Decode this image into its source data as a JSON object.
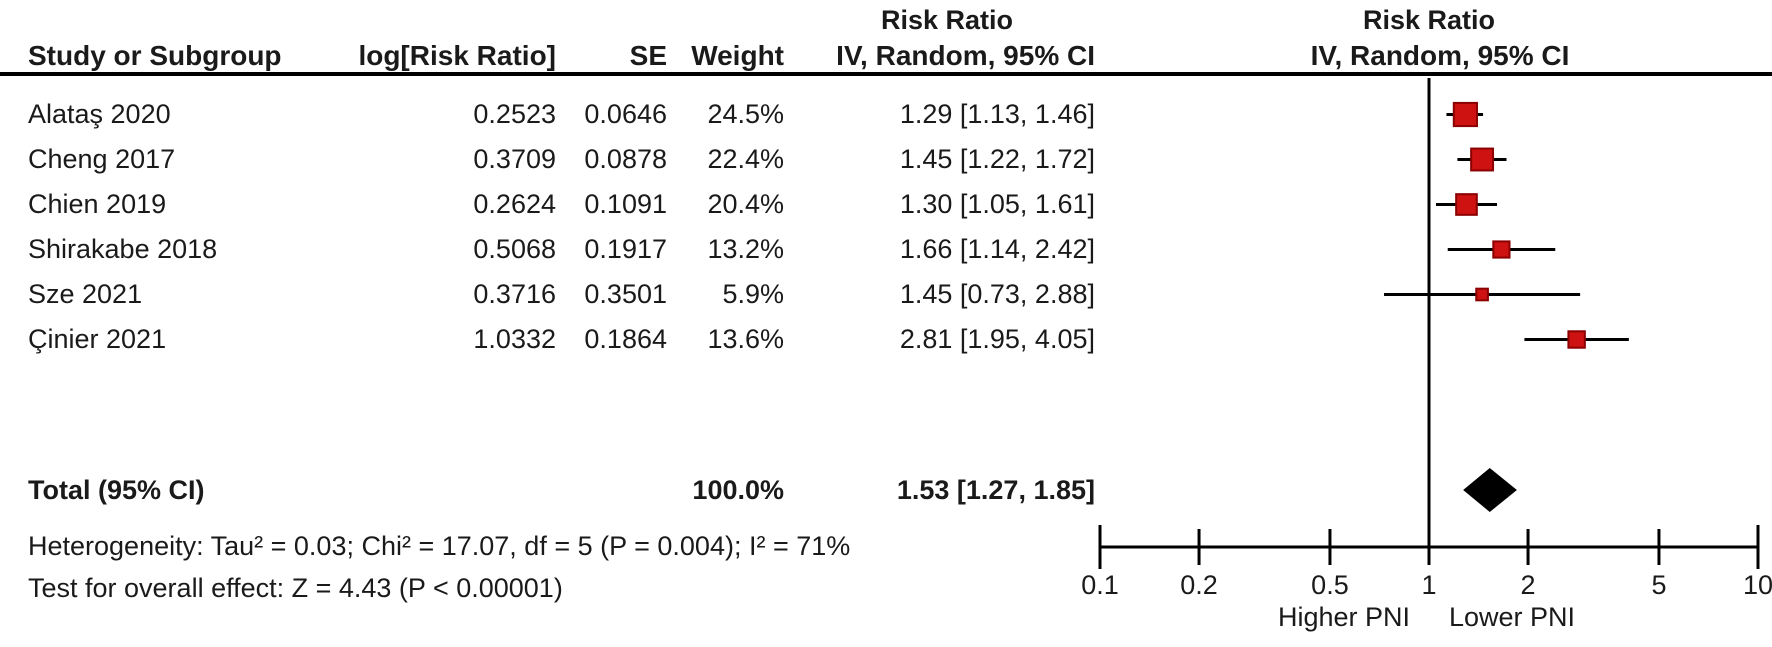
{
  "figure": {
    "header": {
      "risk_ratio_left": "Risk Ratio",
      "risk_ratio_right": "Risk Ratio",
      "study_col": "Study or Subgroup",
      "log_col": "log[Risk Ratio]",
      "se_col": "SE",
      "weight_col": "Weight",
      "ci_col_left": "IV, Random, 95% CI",
      "ci_col_right": "IV, Random, 95% CI"
    },
    "total_row": {
      "label": "Total (95% CI)",
      "weight": "100.0%",
      "ci_text": "1.53 [1.27, 1.85]"
    },
    "footnotes": {
      "heterogeneity": "Heterogeneity: Tau² = 0.03; Chi² = 17.07, df = 5 (P = 0.004); I² = 71%",
      "overall_effect": "Test for overall effect: Z = 4.43 (P < 0.00001)"
    },
    "colors": {
      "marker_fill": "#ce1212",
      "marker_stroke": "#8b0000",
      "line_color": "#000000",
      "diamond_color": "#000000",
      "text_color": "#1a1a1a"
    }
  },
  "chart_data": {
    "type": "scatter",
    "subtype": "forest-plot",
    "effect_measure": "Risk Ratio",
    "model": "IV, Random, 95% CI",
    "studies": [
      {
        "study": "Alataş 2020",
        "log_rr": "0.2523",
        "se": "0.0646",
        "weight_text": "24.5%",
        "ci_text": "1.29 [1.13, 1.46]",
        "rr": 1.29,
        "lo": 1.13,
        "hi": 1.46,
        "weight": 24.5
      },
      {
        "study": "Cheng 2017",
        "log_rr": "0.3709",
        "se": "0.0878",
        "weight_text": "22.4%",
        "ci_text": "1.45 [1.22, 1.72]",
        "rr": 1.45,
        "lo": 1.22,
        "hi": 1.72,
        "weight": 22.4
      },
      {
        "study": "Chien 2019",
        "log_rr": "0.2624",
        "se": "0.1091",
        "weight_text": "20.4%",
        "ci_text": "1.30 [1.05, 1.61]",
        "rr": 1.3,
        "lo": 1.05,
        "hi": 1.61,
        "weight": 20.4
      },
      {
        "study": "Shirakabe 2018",
        "log_rr": "0.5068",
        "se": "0.1917",
        "weight_text": "13.2%",
        "ci_text": "1.66 [1.14, 2.42]",
        "rr": 1.66,
        "lo": 1.14,
        "hi": 2.42,
        "weight": 13.2
      },
      {
        "study": "Sze 2021",
        "log_rr": "0.3716",
        "se": "0.3501",
        "weight_text": "5.9%",
        "ci_text": "1.45 [0.73, 2.88]",
        "rr": 1.45,
        "lo": 0.73,
        "hi": 2.88,
        "weight": 5.9
      },
      {
        "study": "Çinier 2021",
        "log_rr": "1.0332",
        "se": "0.1864",
        "weight_text": "13.6%",
        "ci_text": "2.81 [1.95, 4.05]",
        "rr": 2.81,
        "lo": 1.95,
        "hi": 4.05,
        "weight": 13.6
      }
    ],
    "total": {
      "rr": 1.53,
      "lo": 1.27,
      "hi": 1.85,
      "weight": 100.0
    },
    "x_axis": {
      "scale": "log",
      "ticks": [
        0.1,
        0.2,
        0.5,
        1,
        2,
        5,
        10
      ],
      "tick_labels": [
        "0.1",
        "0.2",
        "0.5",
        "1",
        "2",
        "5",
        "10"
      ],
      "label_left": "Higher PNI",
      "label_right": "Lower PNI",
      "xlim": [
        0.1,
        10
      ]
    },
    "heterogeneity": {
      "tau2": 0.03,
      "chi2": 17.07,
      "df": 5,
      "p": 0.004,
      "i2_pct": 71
    },
    "overall_effect": {
      "z": 4.43,
      "p": "< 0.00001"
    }
  }
}
